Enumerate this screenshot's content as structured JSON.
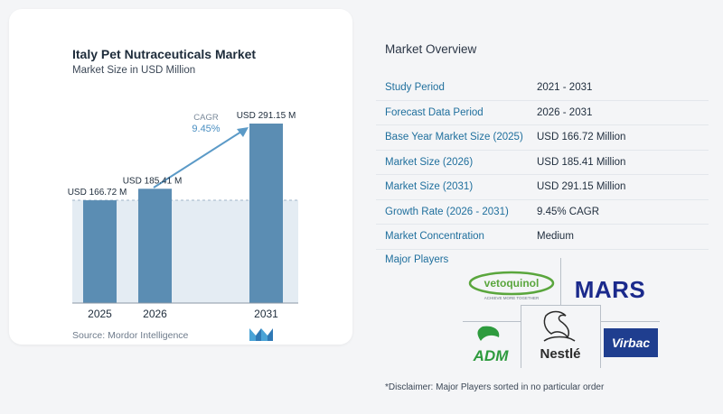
{
  "chart": {
    "title": "Italy Pet Nutraceuticals Market",
    "subtitle": "Market Size in USD Million",
    "cagr_label": "CAGR",
    "cagr_value": "9.45%",
    "source": "Source:  Mordor Intelligence"
  },
  "chart_data": {
    "type": "bar",
    "categories": [
      "2025",
      "2026",
      "2031"
    ],
    "values": [
      166.72,
      185.41,
      291.15
    ],
    "data_labels": [
      "USD 166.72 M",
      "USD 185.41 M",
      "USD 291.15 M"
    ],
    "title": "Italy Pet Nutraceuticals Market",
    "subtitle": "Market Size in USD Million",
    "xlabel": "",
    "ylabel": "",
    "ylim": [
      0,
      291.15
    ],
    "grid": false,
    "colors": {
      "bar_dark": "#5b8db3",
      "bar_light": "#6f9fc4",
      "band": "#e4ecf3",
      "arrow": "#5b9ac7"
    }
  },
  "overview": {
    "title": "Market Overview",
    "rows": [
      {
        "label": "Study Period",
        "value": "2021 - 2031"
      },
      {
        "label": "Forecast Data Period",
        "value": "2026 - 2031"
      },
      {
        "label": "Base Year Market Size (2025)",
        "value": "USD 166.72 Million"
      },
      {
        "label": "Market Size (2026)",
        "value": "USD 185.41 Million"
      },
      {
        "label": "Market Size (2031)",
        "value": "USD 291.15 Million"
      },
      {
        "label": "Growth Rate (2026 - 2031)",
        "value": "9.45% CAGR"
      },
      {
        "label": "Market Concentration",
        "value": "Medium"
      }
    ]
  },
  "players": {
    "title": "Major Players",
    "logos": {
      "vetoquinol": "vetoquinol",
      "vetoquinol_tag": "ACHIEVE MORE TOGETHER",
      "mars": "MARS",
      "adm": "ADM",
      "nestle": "Nestlé",
      "virbac": "Virbac"
    }
  },
  "disclaimer": "*Disclaimer: Major Players sorted in no particular order"
}
